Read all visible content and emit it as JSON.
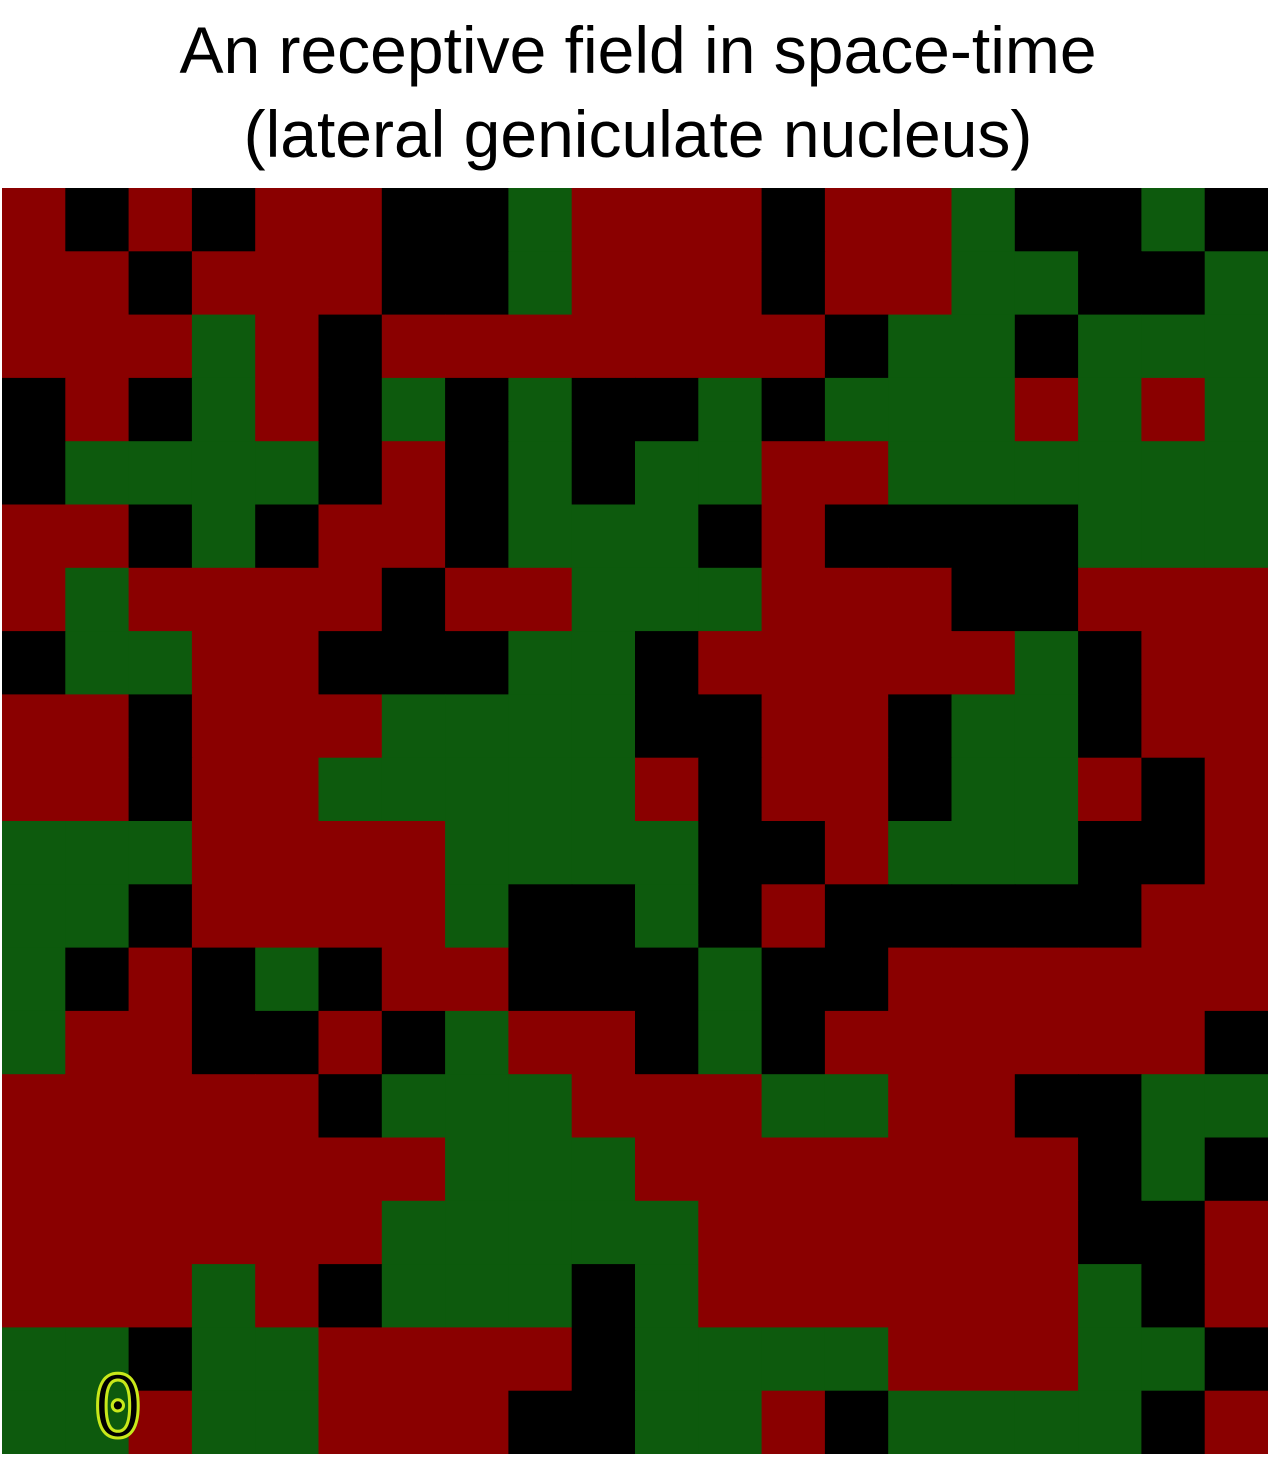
{
  "title": {
    "line1": "An receptive field in space-time",
    "line2": "(lateral geniculate nucleus)"
  },
  "frame_label": "0",
  "colors": {
    "background": "#ffffff",
    "positive": "#8a0000",
    "negative": "#0d5a0d",
    "neutral": "#000000",
    "label": "#c8e81a"
  },
  "grid": {
    "cols": 20,
    "rows": 20,
    "cells": [
      "rkrkrrkkgrrrkrrgkkgk",
      "rrkrrrkkgrrrkrrggkkg",
      "rrrgrkrrrrrrrkggkggg",
      "krkgrkgkgkkgkgggrgrg",
      "kggggkrkgkggrrgggggg",
      "rrkgkrrkgggkrkkkkggg",
      "rgrrrrkrrgggrrrkkrrr",
      "kggrrkkkggkrrrrrgkrr",
      "rrkrrrggggkkrrkggkrr",
      "rrkrrgggggrkrrkggrkr",
      "gggrrrrggggkkrgggkkr",
      "ggkrrrrgkkgkrkkkkkrr",
      "gkrkgkrrkkkgkkrrrrrr",
      "grrkkrkgrrkgkrrrrrrk",
      "rrrrrkgggrrrggrrkkgg",
      "rrrrrrrgggrrrrrrrkgk",
      "rrrrrrgggggrrrrrrkkr",
      "rrrgrkgggkgrrrrrrgkr",
      "ggkggrrrrkggggrrrggk",
      "ggrggrrrkkggrkggggkr"
    ]
  }
}
